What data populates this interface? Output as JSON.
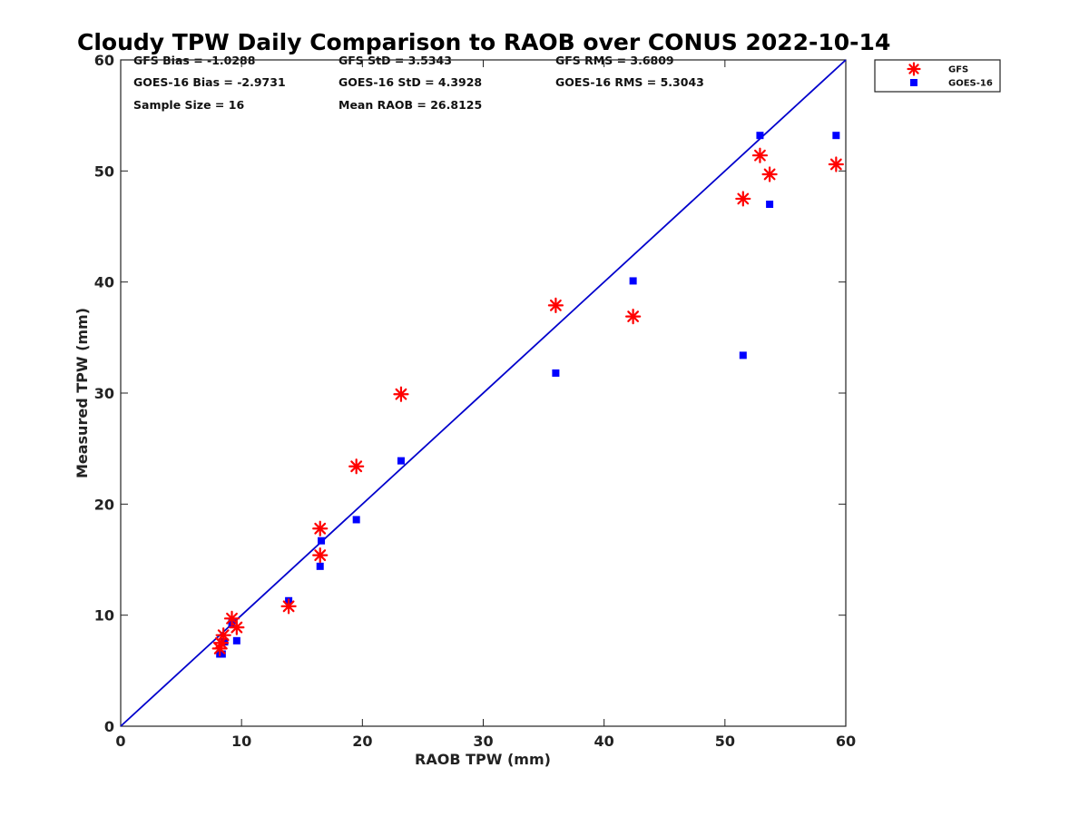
{
  "chart_data": {
    "type": "scatter",
    "title": "Cloudy TPW Daily Comparison to RAOB over CONUS 2022-10-14",
    "xlabel": "RAOB TPW (mm)",
    "ylabel": "Measured TPW (mm)",
    "xlim": [
      0,
      60
    ],
    "ylim": [
      0,
      60
    ],
    "xticks": [
      0,
      10,
      20,
      30,
      40,
      50,
      60
    ],
    "yticks": [
      0,
      10,
      20,
      30,
      40,
      50,
      60
    ],
    "grid": false,
    "legend_position": "top-right-outside",
    "reference_line": {
      "from": [
        0,
        0
      ],
      "to": [
        60,
        60
      ],
      "color": "#0000cc"
    },
    "stats": [
      [
        "GFS Bias = -1.0288",
        "GFS StD = 3.5343",
        "GFS RMS = 3.6809"
      ],
      [
        "GOES-16 Bias = -2.9731",
        "GOES-16 StD = 4.3928",
        "GOES-16 RMS = 5.3043"
      ],
      [
        "Sample Size = 16",
        "Mean RAOB = 26.8125",
        ""
      ]
    ],
    "series": [
      {
        "name": "GFS",
        "marker": "asterisk",
        "color": "#ff0000",
        "points": [
          [
            8.2,
            7.0
          ],
          [
            8.3,
            7.5
          ],
          [
            8.5,
            8.2
          ],
          [
            9.2,
            9.7
          ],
          [
            9.6,
            8.9
          ],
          [
            13.9,
            10.8
          ],
          [
            16.5,
            15.4
          ],
          [
            16.5,
            17.8
          ],
          [
            19.5,
            23.4
          ],
          [
            23.2,
            29.9
          ],
          [
            36.0,
            37.9
          ],
          [
            42.4,
            36.9
          ],
          [
            51.5,
            47.5
          ],
          [
            52.9,
            51.4
          ],
          [
            53.7,
            49.7
          ],
          [
            59.2,
            50.6
          ]
        ]
      },
      {
        "name": "GOES-16",
        "marker": "square",
        "color": "#0000ff",
        "points": [
          [
            8.2,
            6.5
          ],
          [
            8.4,
            6.5
          ],
          [
            8.6,
            7.6
          ],
          [
            9.2,
            9.3
          ],
          [
            9.6,
            7.7
          ],
          [
            13.9,
            11.3
          ],
          [
            16.5,
            14.4
          ],
          [
            16.6,
            16.7
          ],
          [
            19.5,
            18.6
          ],
          [
            23.2,
            23.9
          ],
          [
            36.0,
            31.8
          ],
          [
            42.4,
            40.1
          ],
          [
            51.5,
            33.4
          ],
          [
            52.9,
            53.2
          ],
          [
            53.7,
            47.0
          ],
          [
            59.2,
            53.2
          ]
        ]
      }
    ]
  }
}
